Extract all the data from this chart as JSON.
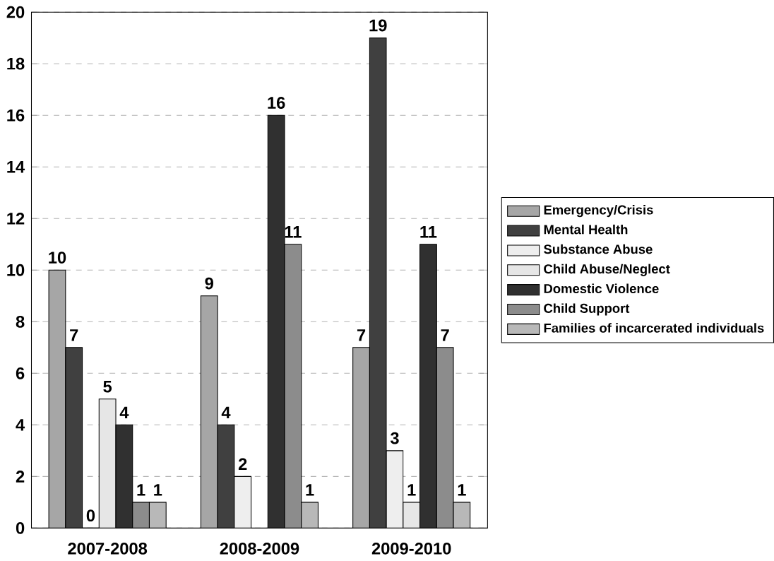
{
  "chart_data": {
    "type": "bar",
    "categories": [
      "2007-2008",
      "2008-2009",
      "2009-2010"
    ],
    "series": [
      {
        "name": "Emergency/Crisis",
        "color": "#a6a6a6",
        "values": [
          10,
          9,
          7
        ]
      },
      {
        "name": "Mental Health",
        "color": "#404040",
        "values": [
          7,
          4,
          19
        ]
      },
      {
        "name": "Substance Abuse",
        "color": "#eeeeee",
        "values": [
          0,
          2,
          3
        ]
      },
      {
        "name": "Child Abuse/Neglect",
        "color": "#e6e6e6",
        "values": [
          5,
          null,
          1
        ]
      },
      {
        "name": "Domestic Violence",
        "color": "#303030",
        "values": [
          4,
          16,
          11
        ]
      },
      {
        "name": "Child Support",
        "color": "#8c8c8c",
        "values": [
          1,
          11,
          7
        ]
      },
      {
        "name": "Families of incarcerated individuals",
        "color": "#b8b8b8",
        "values": [
          1,
          1,
          1
        ]
      }
    ],
    "ylim": [
      0,
      20
    ],
    "yticks": [
      0,
      2,
      4,
      6,
      8,
      10,
      12,
      14,
      16,
      18,
      20
    ],
    "grid": "y",
    "legend": "right",
    "data_labels": true
  }
}
